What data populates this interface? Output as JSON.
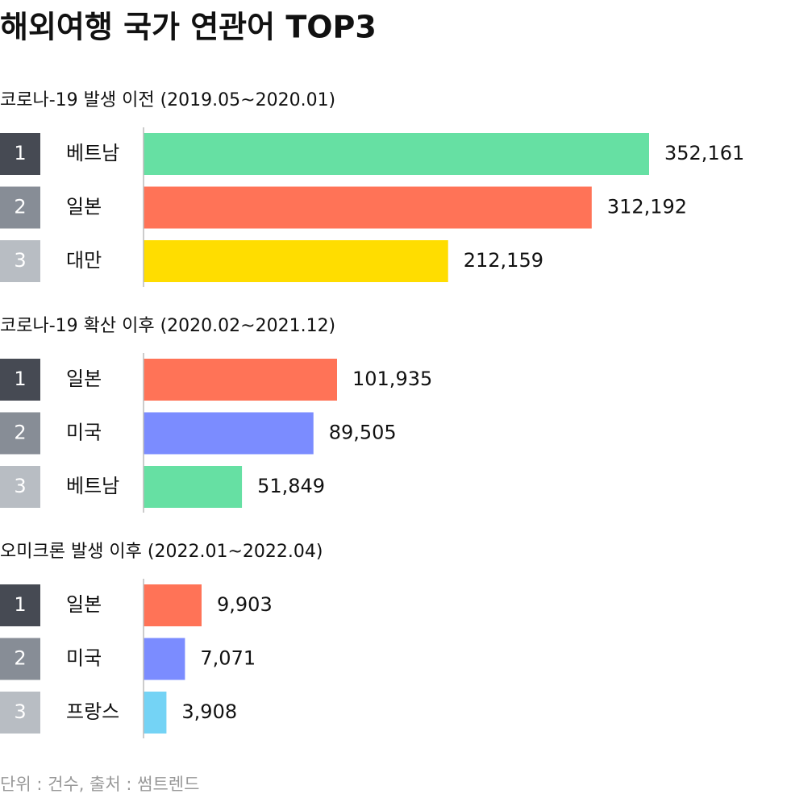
{
  "title": "해외여행 국가 연관어 TOP3",
  "footer": "단위 : 건수,  출처 : 썸트렌드",
  "rank_colors": [
    "#464a53",
    "#878d96",
    "#b8bdc3"
  ],
  "chart_data": [
    {
      "type": "bar",
      "title": "코로나-19 발생 이전 (2019.05~2020.01)",
      "ranks": [
        1,
        2,
        3
      ],
      "categories": [
        "베트남",
        "일본",
        "대만"
      ],
      "values": [
        352161,
        312192,
        212159
      ],
      "value_labels": [
        "352,161",
        "312,192",
        "212,159"
      ],
      "colors": [
        "#66e0a3",
        "#ff7357",
        "#ffdd00"
      ]
    },
    {
      "type": "bar",
      "title": "코로나-19 확산 이후 (2020.02~2021.12)",
      "ranks": [
        1,
        2,
        3
      ],
      "categories": [
        "일본",
        "미국",
        "베트남"
      ],
      "values": [
        101935,
        89505,
        51849
      ],
      "value_labels": [
        "101,935",
        "89,505",
        "51,849"
      ],
      "colors": [
        "#ff7357",
        "#7b8cff",
        "#66e0a3"
      ]
    },
    {
      "type": "bar",
      "title": "오미크론 발생 이후 (2022.01~2022.04)",
      "ranks": [
        1,
        2,
        3
      ],
      "categories": [
        "일본",
        "미국",
        "프랑스"
      ],
      "values": [
        9903,
        7071,
        3908
      ],
      "value_labels": [
        "9,903",
        "7,071",
        "3,908"
      ],
      "colors": [
        "#ff7357",
        "#7b8cff",
        "#74d3f5"
      ]
    }
  ]
}
